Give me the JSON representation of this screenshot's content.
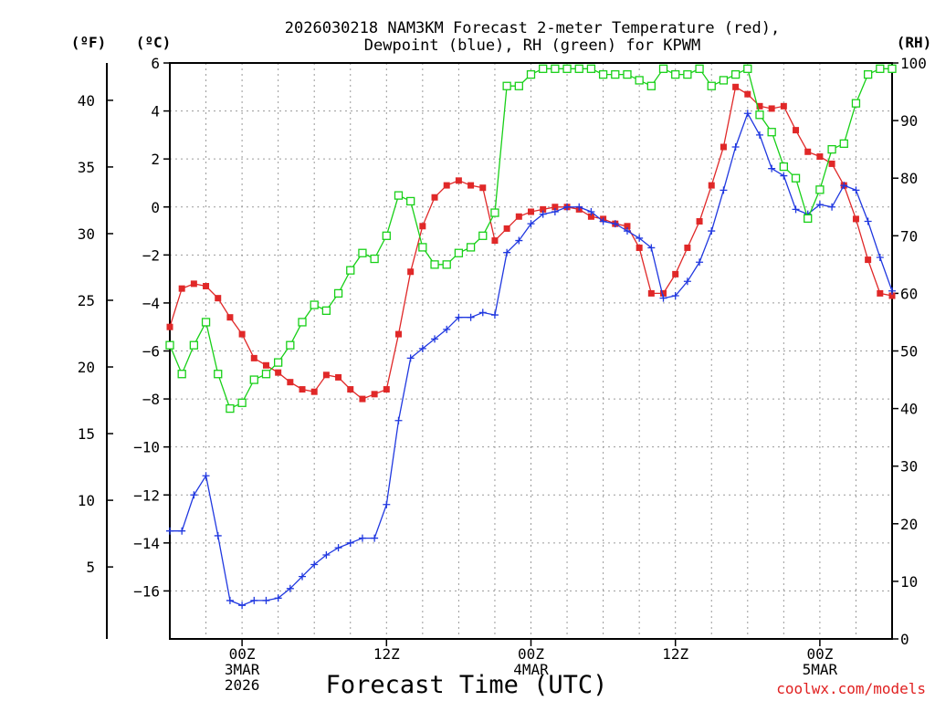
{
  "chart_data": {
    "type": "line",
    "title": [
      "2026030218 NAM3KM Forecast 2-meter Temperature (red),",
      "Dewpoint (blue), RH (green) for KPWM"
    ],
    "xlabel": "Forecast Time (UTC)",
    "credit": "coolwx.com/models",
    "units": {
      "fahrenheit": "(ºF)",
      "celsius": "(ºC)",
      "rh": "(RH)"
    },
    "x_ticks": [
      {
        "hour": 6,
        "lines": [
          "00Z",
          "3MAR",
          "2026"
        ]
      },
      {
        "hour": 18,
        "lines": [
          "12Z"
        ]
      },
      {
        "hour": 30,
        "lines": [
          "00Z",
          "4MAR"
        ]
      },
      {
        "hour": 42,
        "lines": [
          "12Z"
        ]
      },
      {
        "hour": 54,
        "lines": [
          "00Z",
          "5MAR"
        ]
      }
    ],
    "x_range": [
      0,
      60
    ],
    "ylim_celsius": [
      -18,
      6
    ],
    "ylim_rh": [
      0,
      100
    ],
    "celsius_ticks": [
      "−16",
      "−14",
      "−12",
      "−10",
      "−8",
      "−6",
      "−4",
      "−2",
      "0",
      "2",
      "4",
      "6"
    ],
    "fahrenheit_ticks": [
      "5",
      "10",
      "15",
      "20",
      "25",
      "30",
      "35",
      "40"
    ],
    "rh_ticks": [
      "0",
      "10",
      "20",
      "30",
      "40",
      "50",
      "60",
      "70",
      "80",
      "90",
      "100"
    ],
    "hours": [
      0,
      1,
      2,
      3,
      4,
      5,
      6,
      7,
      8,
      9,
      10,
      11,
      12,
      13,
      14,
      15,
      16,
      17,
      18,
      19,
      20,
      21,
      22,
      23,
      24,
      25,
      26,
      27,
      28,
      29,
      30,
      31,
      32,
      33,
      34,
      35,
      36,
      37,
      38,
      39,
      40,
      41,
      42,
      43,
      44,
      45,
      46,
      47,
      48,
      49,
      50,
      51,
      52,
      53,
      54,
      55,
      56,
      57,
      58,
      59,
      60
    ],
    "series": [
      {
        "name": "Temperature",
        "color": "#e02828",
        "marker": "filled-square",
        "values": [
          -5.0,
          -3.4,
          -3.2,
          -3.3,
          -3.8,
          -4.6,
          -5.3,
          -6.3,
          -6.6,
          -6.9,
          -7.3,
          -7.6,
          -7.7,
          -7.0,
          -7.1,
          -7.6,
          -8.0,
          -7.8,
          -7.6,
          -5.3,
          -2.7,
          -0.8,
          0.4,
          0.9,
          1.1,
          0.9,
          0.8,
          -1.4,
          -0.9,
          -0.4,
          -0.2,
          -0.1,
          0.0,
          0.0,
          -0.1,
          -0.4,
          -0.5,
          -0.7,
          -0.8,
          -1.7,
          -3.6,
          -3.6,
          -2.8,
          -1.7,
          -0.6,
          0.9,
          2.5,
          5.0,
          4.7,
          4.2,
          4.1,
          4.2,
          3.2,
          2.3,
          2.1,
          1.8,
          0.9,
          -0.5,
          -2.2,
          -3.6,
          -3.7
        ]
      },
      {
        "name": "Dewpoint",
        "color": "#2038e0",
        "marker": "plus",
        "values": [
          -13.5,
          -13.5,
          -12.0,
          -11.2,
          -13.7,
          -16.4,
          -16.6,
          -16.4,
          -16.4,
          -16.3,
          -15.9,
          -15.4,
          -14.9,
          -14.5,
          -14.2,
          -14.0,
          -13.8,
          -13.8,
          -12.4,
          -8.9,
          -6.3,
          -5.9,
          -5.5,
          -5.1,
          -4.6,
          -4.6,
          -4.4,
          -4.5,
          -1.9,
          -1.4,
          -0.7,
          -0.3,
          -0.2,
          0.0,
          0.0,
          -0.2,
          -0.6,
          -0.7,
          -1.0,
          -1.3,
          -1.7,
          -3.8,
          -3.7,
          -3.1,
          -2.3,
          -1.0,
          0.7,
          2.5,
          3.9,
          3.0,
          1.6,
          1.3,
          -0.1,
          -0.3,
          0.1,
          0.0,
          0.9,
          0.7,
          -0.6,
          -2.1,
          -3.5
        ]
      },
      {
        "name": "RH",
        "color": "#18d018",
        "marker": "open-square",
        "values": [
          51,
          46,
          51,
          55,
          46,
          40,
          41,
          45,
          46,
          48,
          51,
          55,
          58,
          57,
          60,
          64,
          67,
          66,
          70,
          77,
          76,
          68,
          65,
          65,
          67,
          68,
          70,
          74,
          96,
          96,
          98,
          99,
          99,
          99,
          99,
          99,
          98,
          98,
          98,
          97,
          96,
          99,
          98,
          98,
          99,
          96,
          97,
          98,
          99,
          91,
          88,
          82,
          80,
          73,
          78,
          85,
          86,
          93,
          98,
          99,
          99
        ]
      }
    ]
  }
}
